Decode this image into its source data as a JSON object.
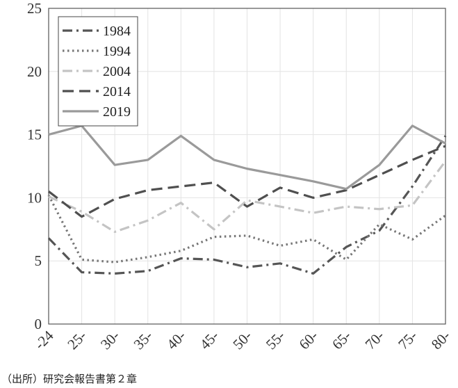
{
  "source_note": "（出所）研究会報告書第２章",
  "chart_data": {
    "type": "line",
    "categories": [
      "-24",
      "25-",
      "30-",
      "35-",
      "40-",
      "45-",
      "50-",
      "55-",
      "60-",
      "65-",
      "70-",
      "75-",
      "80-"
    ],
    "ylim": [
      0,
      25
    ],
    "yticks": [
      0,
      5,
      10,
      15,
      20,
      25
    ],
    "grid": true,
    "legend_position": "top-left",
    "series": [
      {
        "name": "1984",
        "dash": "dashdot",
        "color": "#555555",
        "values": [
          6.8,
          4.1,
          4.0,
          4.2,
          5.2,
          5.1,
          4.5,
          4.8,
          4.0,
          6.1,
          7.4,
          10.9,
          14.9
        ]
      },
      {
        "name": "1994",
        "dash": "dotted",
        "color": "#777777",
        "values": [
          10.2,
          5.1,
          4.9,
          5.3,
          5.8,
          6.9,
          7.0,
          6.2,
          6.7,
          5.1,
          7.9,
          6.7,
          8.6
        ]
      },
      {
        "name": "2004",
        "dash": "dashdot",
        "color": "#c4c4c4",
        "values": [
          10.1,
          8.9,
          7.3,
          8.2,
          9.6,
          7.5,
          9.8,
          9.3,
          8.8,
          9.3,
          9.1,
          9.4,
          12.9
        ]
      },
      {
        "name": "2014",
        "dash": "dashed",
        "color": "#4f4f4f",
        "values": [
          10.5,
          8.5,
          9.9,
          10.6,
          10.9,
          11.2,
          9.3,
          10.8,
          10.0,
          10.6,
          11.8,
          13.0,
          14.1
        ]
      },
      {
        "name": "2019",
        "dash": "solid",
        "color": "#9a9a9a",
        "values": [
          15.0,
          15.7,
          12.6,
          13.0,
          14.9,
          13.0,
          12.3,
          11.8,
          11.3,
          10.7,
          12.6,
          15.7,
          14.3
        ]
      }
    ]
  }
}
